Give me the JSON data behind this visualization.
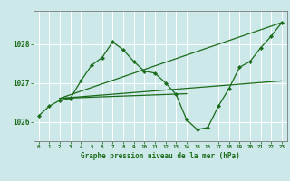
{
  "bg_color": "#cce8e8",
  "grid_color": "#ffffff",
  "line_color": "#1a6b1a",
  "xlabel": "Graphe pression niveau de la mer (hPa)",
  "xlim": [
    -0.5,
    23.5
  ],
  "ylim": [
    1025.5,
    1028.85
  ],
  "yticks": [
    1026,
    1027,
    1028
  ],
  "xticks": [
    0,
    1,
    2,
    3,
    4,
    5,
    6,
    7,
    8,
    9,
    10,
    11,
    12,
    13,
    14,
    15,
    16,
    17,
    18,
    19,
    20,
    21,
    22,
    23
  ],
  "main_line": [
    [
      0,
      1026.15
    ],
    [
      1,
      1026.4
    ],
    [
      2,
      1026.55
    ],
    [
      3,
      1026.6
    ],
    [
      4,
      1027.05
    ],
    [
      5,
      1027.45
    ],
    [
      6,
      1027.65
    ],
    [
      7,
      1028.05
    ],
    [
      8,
      1027.85
    ],
    [
      9,
      1027.55
    ],
    [
      10,
      1027.3
    ],
    [
      11,
      1027.25
    ],
    [
      12,
      1027.0
    ],
    [
      13,
      1026.7
    ],
    [
      14,
      1026.05
    ],
    [
      15,
      1025.8
    ],
    [
      16,
      1025.85
    ],
    [
      17,
      1026.4
    ],
    [
      18,
      1026.85
    ],
    [
      19,
      1027.4
    ],
    [
      20,
      1027.55
    ],
    [
      21,
      1027.9
    ],
    [
      22,
      1028.2
    ],
    [
      23,
      1028.55
    ]
  ],
  "trend_line1": [
    [
      2,
      1026.6
    ],
    [
      23,
      1028.55
    ]
  ],
  "trend_line2": [
    [
      2,
      1026.6
    ],
    [
      23,
      1027.05
    ]
  ],
  "trend_line3": [
    [
      2,
      1026.6
    ],
    [
      14,
      1026.72
    ]
  ]
}
